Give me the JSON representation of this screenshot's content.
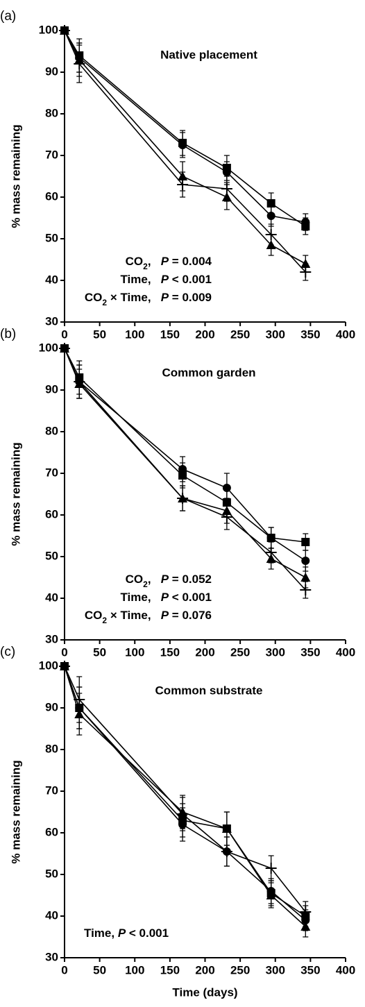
{
  "chart_data": [
    {
      "type": "line",
      "panel_label": "(a)",
      "title": "Native placement",
      "ylabel": "% mass remaining",
      "x": [
        0,
        21,
        168,
        231,
        294,
        343
      ],
      "series": [
        {
          "marker": "square",
          "color": "#000000",
          "values": [
            100,
            94,
            73,
            67,
            58.5,
            53
          ],
          "errors": [
            0.5,
            4,
            3,
            3,
            2.5,
            2
          ]
        },
        {
          "marker": "circle",
          "color": "#000000",
          "values": [
            100,
            93.5,
            72.5,
            66,
            55.5,
            54
          ],
          "errors": [
            0.5,
            3.5,
            3,
            2.5,
            2.5,
            2
          ]
        },
        {
          "marker": "triangle",
          "color": "#000000",
          "values": [
            100,
            93,
            65,
            60,
            48.5,
            44
          ],
          "errors": [
            0.5,
            4,
            3.5,
            3,
            2.5,
            2
          ]
        },
        {
          "marker": "cross",
          "color": "#000000",
          "values": [
            100,
            92,
            63,
            62,
            51,
            42
          ],
          "errors": [
            0.5,
            4.5,
            3,
            3,
            2.5,
            2
          ]
        }
      ],
      "annotations": [
        [
          {
            "text": "CO"
          },
          {
            "text": "2",
            "style": "sub"
          },
          {
            "text": ",   "
          },
          {
            "text": "P",
            "style": "italic"
          },
          {
            "text": " = 0.004"
          }
        ],
        [
          {
            "text": "Time,   "
          },
          {
            "text": "P",
            "style": "italic"
          },
          {
            "text": " < 0.001"
          }
        ],
        [
          {
            "text": "CO"
          },
          {
            "text": "2",
            "style": "sub"
          },
          {
            "text": " × Time,   "
          },
          {
            "text": "P",
            "style": "italic"
          },
          {
            "text": " = 0.009"
          }
        ]
      ],
      "xlim": [
        0,
        400
      ],
      "xticks": [
        0,
        50,
        100,
        150,
        200,
        250,
        300,
        350,
        400
      ],
      "ylim": [
        30,
        100
      ],
      "yticks": [
        30,
        40,
        50,
        60,
        70,
        80,
        90,
        100
      ]
    },
    {
      "type": "line",
      "panel_label": "(b)",
      "title": "Common garden",
      "ylabel": "% mass remaining",
      "x": [
        0,
        21,
        168,
        231,
        294,
        343
      ],
      "series": [
        {
          "marker": "square",
          "color": "#000000",
          "values": [
            100,
            93,
            69.5,
            63,
            54.5,
            53.5
          ],
          "errors": [
            0.5,
            4,
            3,
            3.5,
            2.5,
            2
          ]
        },
        {
          "marker": "circle",
          "color": "#000000",
          "values": [
            100,
            92,
            71,
            66.5,
            54.5,
            49
          ],
          "errors": [
            0.5,
            4,
            3,
            3.5,
            2.5,
            2.5
          ]
        },
        {
          "marker": "triangle",
          "color": "#000000",
          "values": [
            100,
            91.5,
            64,
            61,
            49.5,
            45
          ],
          "errors": [
            0.5,
            3.5,
            3,
            3,
            2.5,
            2.5
          ]
        },
        {
          "marker": "cross",
          "color": "#000000",
          "values": [
            100,
            92,
            64,
            59.5,
            51,
            42
          ],
          "errors": [
            0.5,
            4,
            3,
            3,
            2.5,
            2
          ]
        }
      ],
      "annotations": [
        [
          {
            "text": "CO"
          },
          {
            "text": "2",
            "style": "sub"
          },
          {
            "text": ",   "
          },
          {
            "text": "P",
            "style": "italic"
          },
          {
            "text": " = 0.052"
          }
        ],
        [
          {
            "text": "Time,   "
          },
          {
            "text": "P",
            "style": "italic"
          },
          {
            "text": " < 0.001"
          }
        ],
        [
          {
            "text": "CO"
          },
          {
            "text": "2",
            "style": "sub"
          },
          {
            "text": " × Time,   "
          },
          {
            "text": "P",
            "style": "italic"
          },
          {
            "text": " = 0.076"
          }
        ]
      ],
      "xlim": [
        0,
        400
      ],
      "xticks": [
        0,
        50,
        100,
        150,
        200,
        250,
        300,
        350,
        400
      ],
      "ylim": [
        30,
        100
      ],
      "yticks": [
        30,
        40,
        50,
        60,
        70,
        80,
        90,
        100
      ]
    },
    {
      "type": "line",
      "panel_label": "(c)",
      "title": "Common substrate",
      "ylabel": "% mass remaining",
      "xlabel": "Time (days)",
      "x": [
        0,
        21,
        168,
        231,
        294,
        343
      ],
      "series": [
        {
          "marker": "square",
          "color": "#000000",
          "values": [
            100,
            90,
            63,
            61,
            45.5,
            40
          ],
          "errors": [
            0.5,
            5,
            4,
            4,
            3,
            2.5
          ]
        },
        {
          "marker": "circle",
          "color": "#000000",
          "values": [
            100,
            90,
            62,
            55.5,
            46,
            39
          ],
          "errors": [
            0.5,
            5,
            4,
            3.5,
            3,
            2.5
          ]
        },
        {
          "marker": "triangle",
          "color": "#000000",
          "values": [
            100,
            88.5,
            65,
            61,
            45,
            37.5
          ],
          "errors": [
            0.5,
            5,
            4,
            4,
            3,
            2.5
          ]
        },
        {
          "marker": "cross",
          "color": "#000000",
          "values": [
            100,
            92,
            64.5,
            55.5,
            51.5,
            41
          ],
          "errors": [
            0.5,
            5.5,
            4,
            3.5,
            3,
            2.5
          ]
        }
      ],
      "annotations": [
        [
          {
            "text": "Time, "
          },
          {
            "text": "P",
            "style": "italic"
          },
          {
            "text": " < 0.001"
          }
        ]
      ],
      "xlim": [
        0,
        400
      ],
      "xticks": [
        0,
        50,
        100,
        150,
        200,
        250,
        300,
        350,
        400
      ],
      "ylim": [
        30,
        100
      ],
      "yticks": [
        30,
        40,
        50,
        60,
        70,
        80,
        90,
        100
      ]
    }
  ]
}
